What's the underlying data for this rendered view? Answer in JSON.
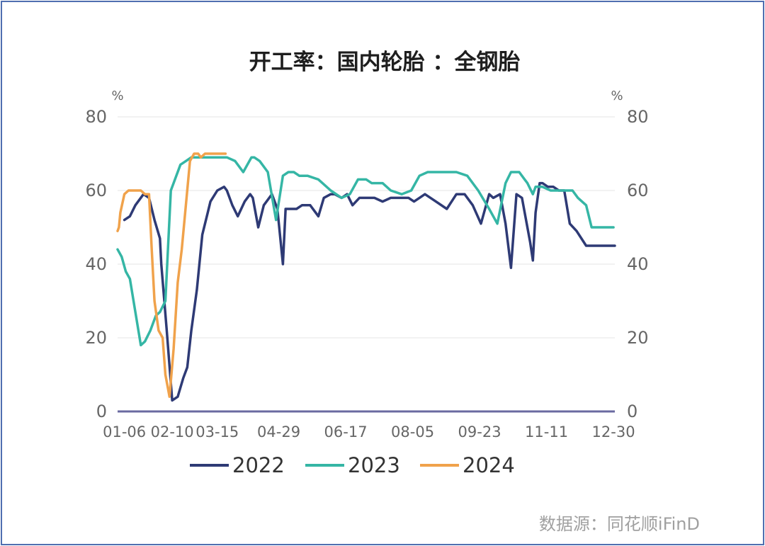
{
  "chart_data": {
    "type": "line",
    "title": "开工率：国内轮胎 ：全钢胎",
    "ylabel": "%",
    "ylabel_right": "%",
    "ylim": [
      0,
      80
    ],
    "yticks": [
      0,
      20,
      40,
      60,
      80
    ],
    "xlim": [
      "01-01",
      "12-31"
    ],
    "xticks": [
      "01-06",
      "02-10",
      "03-15",
      "04-29",
      "06-17",
      "08-05",
      "09-23",
      "11-11",
      "12-30"
    ],
    "grid": true,
    "legend": "bottom",
    "source": "数据源：同花顺iFinD",
    "series": [
      {
        "name": "2022",
        "color": "#2e3a75",
        "x": [
          "01-06",
          "01-10",
          "01-14",
          "01-20",
          "01-24",
          "01-28",
          "02-01",
          "02-02",
          "02-06",
          "02-10",
          "02-14",
          "02-18",
          "02-21",
          "02-24",
          "02-28",
          "03-04",
          "03-08",
          "03-10",
          "03-15",
          "03-20",
          "03-22",
          "03-26",
          "03-30",
          "04-04",
          "04-08",
          "04-10",
          "04-14",
          "04-18",
          "04-24",
          "04-28",
          "05-02",
          "05-04",
          "05-08",
          "05-12",
          "05-16",
          "05-22",
          "05-28",
          "06-01",
          "06-06",
          "06-09",
          "06-14",
          "06-18",
          "06-22",
          "06-27",
          "07-02",
          "07-08",
          "07-14",
          "07-20",
          "07-26",
          "08-02",
          "08-06",
          "08-10",
          "08-14",
          "08-22",
          "08-30",
          "09-06",
          "09-12",
          "09-18",
          "09-24",
          "09-30",
          "10-03",
          "10-08",
          "10-12",
          "10-16",
          "10-20",
          "10-24",
          "10-30",
          "11-01",
          "11-03",
          "11-06",
          "11-08",
          "11-12",
          "11-16",
          "11-20",
          "11-24",
          "11-28",
          "12-03",
          "12-10",
          "12-14",
          "12-18",
          "12-24",
          "12-28",
          "12-31"
        ],
        "values": [
          52,
          53,
          56,
          59,
          58,
          52,
          47,
          40,
          22,
          3,
          4,
          9,
          12,
          22,
          33,
          48,
          54,
          57,
          60,
          61,
          60,
          56,
          53,
          57,
          59,
          58,
          50,
          56,
          59,
          55,
          40,
          55,
          55,
          55,
          56,
          56,
          53,
          58,
          59,
          59,
          58,
          59,
          56,
          58,
          58,
          58,
          57,
          58,
          58,
          58,
          57,
          58,
          59,
          57,
          55,
          59,
          59,
          56,
          51,
          59,
          58,
          59,
          51,
          39,
          59,
          58,
          46,
          41,
          54,
          62,
          62,
          61,
          61,
          60,
          60,
          51,
          49,
          45,
          45,
          45,
          45,
          45,
          45
        ]
      },
      {
        "name": "2023",
        "color": "#35b6a5",
        "x": [
          "01-01",
          "01-04",
          "01-07",
          "01-10",
          "01-14",
          "01-18",
          "01-21",
          "01-25",
          "01-29",
          "02-01",
          "02-05",
          "02-09",
          "02-12",
          "02-16",
          "02-20",
          "02-24",
          "02-28",
          "03-04",
          "03-10",
          "03-16",
          "03-22",
          "03-28",
          "04-03",
          "04-09",
          "04-11",
          "04-15",
          "04-21",
          "04-27",
          "05-02",
          "05-06",
          "05-10",
          "05-14",
          "05-20",
          "05-28",
          "06-06",
          "06-14",
          "06-20",
          "06-26",
          "07-02",
          "07-06",
          "07-10",
          "07-14",
          "07-20",
          "07-28",
          "08-04",
          "08-10",
          "08-16",
          "08-20",
          "08-24",
          "08-30",
          "09-06",
          "09-14",
          "09-22",
          "09-30",
          "10-06",
          "10-12",
          "10-16",
          "10-20",
          "10-22",
          "10-26",
          "10-28",
          "11-01",
          "11-03",
          "11-08",
          "11-14",
          "11-18",
          "11-22",
          "11-26",
          "11-30",
          "12-04",
          "12-10",
          "12-14",
          "12-18",
          "12-22",
          "12-26",
          "12-30"
        ],
        "values": [
          44,
          42,
          38,
          36,
          27,
          18,
          19,
          22,
          26,
          27,
          30,
          60,
          63,
          67,
          68,
          69,
          69,
          69,
          69,
          69,
          69,
          68,
          65,
          69,
          69,
          68,
          65,
          52,
          64,
          65,
          65,
          64,
          64,
          63,
          60,
          58,
          59,
          63,
          63,
          62,
          62,
          62,
          60,
          59,
          60,
          64,
          65,
          65,
          65,
          65,
          65,
          64,
          60,
          55,
          51,
          62,
          65,
          65,
          65,
          63,
          62,
          59,
          61,
          61,
          60,
          60,
          60,
          60,
          60,
          58,
          56,
          50,
          50,
          50,
          50,
          50
        ]
      },
      {
        "name": "2024",
        "color": "#f0a24b",
        "x": [
          "01-01",
          "01-02",
          "01-03",
          "01-06",
          "01-09",
          "01-12",
          "01-15",
          "01-18",
          "01-21",
          "01-24",
          "01-26",
          "01-28",
          "01-31",
          "02-03",
          "02-05",
          "02-08",
          "02-11",
          "02-14",
          "02-17",
          "02-20",
          "02-23",
          "02-26",
          "02-29",
          "03-03",
          "03-06",
          "03-09",
          "03-12",
          "03-15",
          "03-18",
          "03-21"
        ],
        "values": [
          49,
          50,
          54,
          59,
          60,
          60,
          60,
          60,
          59,
          59,
          44,
          30,
          22,
          20,
          10,
          4,
          17,
          35,
          44,
          56,
          68,
          70,
          70,
          69,
          70,
          70,
          70,
          70,
          70,
          70
        ]
      }
    ]
  }
}
